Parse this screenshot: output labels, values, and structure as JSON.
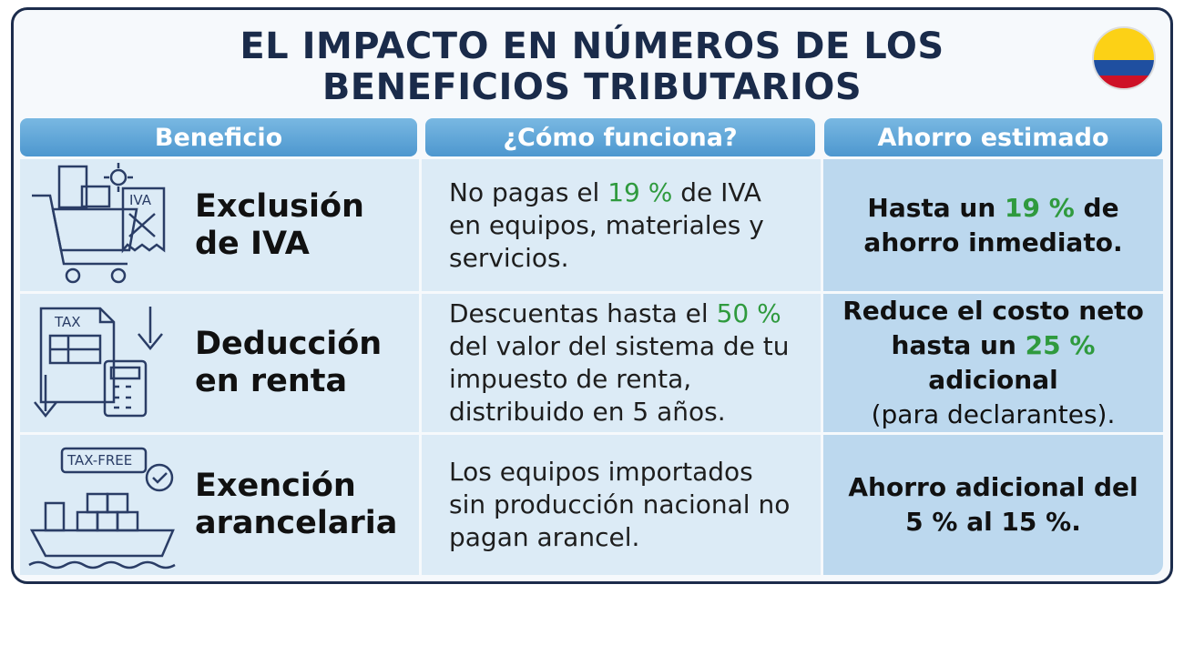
{
  "header": {
    "title_lines": [
      "EL IMPACTO EN NÚMEROS DE LOS",
      "BENEFICIOS TRIBUTARIOS"
    ]
  },
  "highlight_color": "#2f9a3e",
  "table": {
    "columns": [
      "Beneficio",
      "¿Cómo funciona?",
      "Ahorro estimado"
    ],
    "rows": [
      {
        "icon_labels": [
          "IVA"
        ],
        "benefit": "Exclusión de IVA",
        "how": [
          "No pagas el ",
          {
            "text": "19 %",
            "highlight": true
          },
          " de IVA en equipos, materiales y servicios."
        ],
        "savings": [
          "Hasta un ",
          {
            "text": "19 %",
            "highlight": true
          },
          " de ahorro inmediato."
        ]
      },
      {
        "icon_labels": [
          "TAX"
        ],
        "benefit": "Deducción en renta",
        "how": [
          "Descuentas hasta el ",
          {
            "text": "50 %",
            "highlight": true
          },
          " del valor del sistema de tu impuesto de renta, distribuido en 5 años."
        ],
        "savings": [
          "Reduce el costo neto hasta un ",
          {
            "text": "25 %",
            "highlight": true
          },
          " adicional"
        ],
        "note": "(para declarantes)."
      },
      {
        "icon_labels": [
          "TAX-FREE"
        ],
        "benefit": "Exención arancelaria",
        "how": [
          "Los equipos importados sin producción nacional no pagan arancel."
        ],
        "savings": [
          "Ahorro adicional del 5 % al 15 %."
        ]
      }
    ]
  }
}
